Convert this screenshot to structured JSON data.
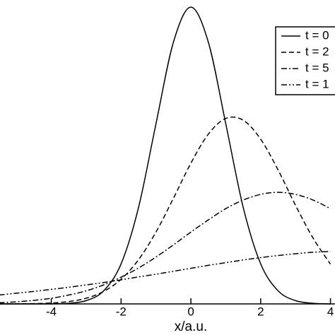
{
  "chart_data": {
    "type": "line",
    "x_label": "x/a.u.",
    "x": [
      -5.5,
      -5,
      -4.5,
      -4,
      -3.5,
      -3,
      -2.5,
      -2,
      -1.5,
      -1,
      -0.5,
      0,
      0.5,
      1,
      1.5,
      2,
      2.5,
      3,
      3.5,
      4
    ],
    "series": [
      {
        "name": "t = 0",
        "color": "#000000",
        "dash": "none",
        "values": [
          0,
          0,
          0,
          0,
          0.002,
          0.011,
          0.044,
          0.135,
          0.325,
          0.607,
          0.882,
          1,
          0.882,
          0.607,
          0.325,
          0.135,
          0.044,
          0.011,
          0.002,
          0
        ]
      },
      {
        "name": "t = 2",
        "color": "#000000",
        "dash": "7,4",
        "values": [
          0,
          0.0003,
          0.001,
          0.003,
          0.008,
          0.019,
          0.042,
          0.083,
          0.149,
          0.242,
          0.356,
          0.474,
          0.572,
          0.625,
          0.619,
          0.555,
          0.451,
          0.332,
          0.222,
          0.134
        ]
      },
      {
        "name": "t = 5",
        "color": "#000000",
        "dash": "8,3,2,3",
        "values": [
          0.004,
          0.007,
          0.012,
          0.019,
          0.03,
          0.044,
          0.064,
          0.09,
          0.121,
          0.158,
          0.199,
          0.242,
          0.283,
          0.321,
          0.35,
          0.369,
          0.376,
          0.369,
          0.35,
          0.321
        ]
      },
      {
        "name": "t = 1",
        "color": "#000000",
        "dash": "8,3,2,3,2,3",
        "values": [
          0.03,
          0.036,
          0.042,
          0.049,
          0.056,
          0.064,
          0.072,
          0.081,
          0.091,
          0.1,
          0.11,
          0.12,
          0.13,
          0.139,
          0.148,
          0.156,
          0.163,
          0.169,
          0.174,
          0.177
        ]
      }
    ],
    "xlim": [
      -5.47,
      4.13
    ],
    "ylim": [
      0,
      1.024
    ],
    "xticks": [
      -4,
      -2,
      0,
      2,
      4
    ]
  }
}
